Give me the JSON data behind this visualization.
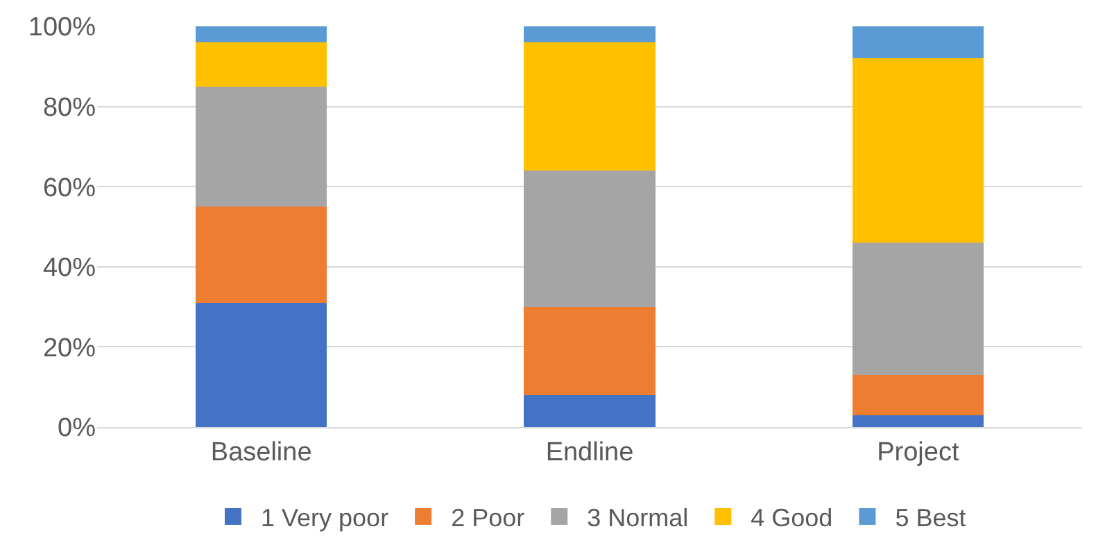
{
  "chart_data": {
    "type": "bar",
    "stacked": true,
    "categories": [
      "Baseline",
      "Endline",
      "Project"
    ],
    "series": [
      {
        "name": "1 Very poor",
        "color": "#4472c4",
        "values": [
          31,
          8,
          3
        ]
      },
      {
        "name": "2 Poor",
        "color": "#ed7d31",
        "values": [
          24,
          22,
          10
        ]
      },
      {
        "name": "3 Normal",
        "color": "#a5a5a5",
        "values": [
          30,
          34,
          33
        ]
      },
      {
        "name": "4 Good",
        "color": "#ffc000",
        "values": [
          11,
          32,
          46
        ]
      },
      {
        "name": "5 Best",
        "color": "#5b9bd5",
        "values": [
          4,
          4,
          8
        ]
      }
    ],
    "ylim": [
      0,
      100
    ],
    "yticks": [
      {
        "value": 0,
        "label": "0%"
      },
      {
        "value": 20,
        "label": "20%"
      },
      {
        "value": 40,
        "label": "40%"
      },
      {
        "value": 60,
        "label": "60%"
      },
      {
        "value": 80,
        "label": "80%"
      },
      {
        "value": 100,
        "label": "100%"
      }
    ],
    "grid": "y",
    "legend": "bottom"
  }
}
